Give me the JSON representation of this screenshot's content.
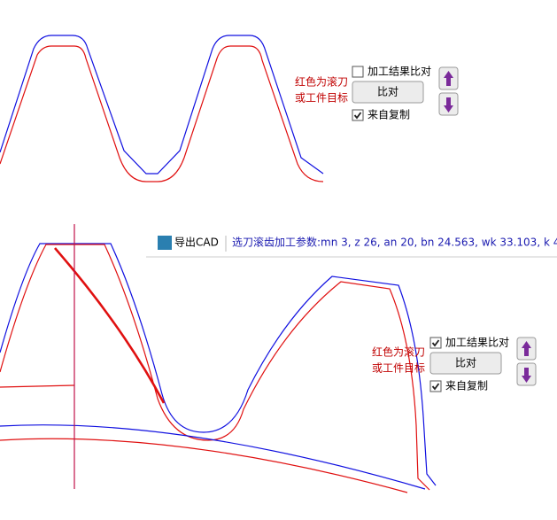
{
  "top_panel": {
    "note": [
      "红色为滚刀",
      "或工件目标"
    ],
    "compare_checkbox": {
      "label": "加工结果比对",
      "checked": false
    },
    "compare_button": "比对",
    "copy_checkbox": {
      "label": "来自复制",
      "checked": true
    }
  },
  "toolbar": {
    "export_button": "导出CAD",
    "params": "选刀滚齿加工参数:mn 3, z 26, an 20, bn 24.563, wk 33.103, k 4"
  },
  "bottom_panel": {
    "note": [
      "红色为滚刀",
      "或工件目标"
    ],
    "compare_checkbox": {
      "label": "加工结果比对",
      "checked": true
    },
    "compare_button": "比对",
    "copy_checkbox": {
      "label": "来自复制",
      "checked": true
    }
  }
}
